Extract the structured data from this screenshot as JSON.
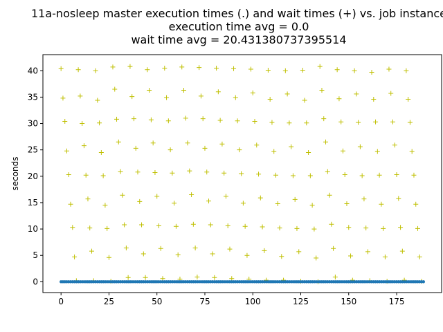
{
  "chart_data": {
    "type": "scatter",
    "title": "11a-nosleep master execution times (.) and wait times (+) vs. job instance",
    "subtitle_lines": [
      "execution time avg = 0.0",
      "wait time avg = 20.431380737395514"
    ],
    "xlabel": "",
    "ylabel": "seconds",
    "xlim": [
      -9.45,
      198.45
    ],
    "ylim": [
      -2.05,
      43.05
    ],
    "xticks": [
      0,
      25,
      50,
      75,
      100,
      125,
      150,
      175
    ],
    "yticks": [
      0,
      5,
      10,
      15,
      20,
      25,
      30,
      35,
      40
    ],
    "grid": false,
    "legend": "none",
    "series": [
      {
        "role": "execution",
        "marker": ".",
        "color": "#1f77b4",
        "n": 190,
        "value": 0.0
      },
      {
        "role": "wait",
        "marker": "+",
        "color": "#bfbf00",
        "x": [
          0,
          1,
          2,
          3,
          4,
          5,
          6,
          7,
          8,
          9,
          10,
          11,
          12,
          13,
          14,
          15,
          16,
          17,
          18,
          19,
          20,
          21,
          22,
          23,
          24,
          25,
          26,
          27,
          28,
          29,
          30,
          31,
          32,
          33,
          34,
          35,
          36,
          37,
          38,
          39,
          40,
          41,
          42,
          43,
          44,
          45,
          46,
          47,
          48,
          49,
          50,
          51,
          52,
          53,
          54,
          55,
          56,
          57,
          58,
          59,
          60,
          61,
          62,
          63,
          64,
          65,
          66,
          67,
          68,
          69,
          70,
          71,
          72,
          73,
          74,
          75,
          76,
          77,
          78,
          79,
          80,
          81,
          82,
          83,
          84,
          85,
          86,
          87,
          88,
          89,
          90,
          91,
          92,
          93,
          94,
          95,
          96,
          97,
          98,
          99,
          100,
          101,
          102,
          103,
          104,
          105,
          106,
          107,
          108,
          109,
          110,
          111,
          112,
          113,
          114,
          115,
          116,
          117,
          118,
          119,
          120,
          121,
          122,
          123,
          124,
          125,
          126,
          127,
          128,
          129,
          130,
          131,
          132,
          133,
          134,
          135,
          136,
          137,
          138,
          139,
          140,
          141,
          142,
          143,
          144,
          145,
          146,
          147,
          148,
          149,
          150,
          151,
          152,
          153,
          154,
          155,
          156,
          157,
          158,
          159,
          160,
          161,
          162,
          163,
          164,
          165,
          166,
          167,
          168,
          169,
          170,
          171,
          172,
          173,
          174,
          175,
          176,
          177,
          178,
          179,
          180,
          181,
          182,
          183,
          184,
          185,
          186,
          187,
          188
        ],
        "y": [
          40.4,
          34.8,
          30.4,
          24.8,
          20.3,
          14.7,
          10.3,
          4.7,
          0.2,
          40.2,
          35.2,
          30.0,
          25.8,
          20.2,
          15.7,
          10.2,
          5.8,
          0.2,
          40.0,
          34.4,
          30.1,
          24.5,
          20.1,
          14.5,
          10.1,
          4.6,
          0.1,
          40.7,
          36.5,
          30.8,
          26.5,
          20.9,
          16.4,
          10.8,
          6.4,
          0.8,
          40.8,
          35.1,
          30.9,
          25.3,
          20.8,
          15.2,
          10.8,
          5.3,
          0.8,
          40.2,
          36.3,
          30.7,
          26.3,
          20.7,
          16.2,
          10.6,
          6.3,
          0.6,
          40.5,
          34.9,
          30.5,
          25.0,
          20.6,
          14.9,
          10.5,
          5.1,
          0.5,
          40.7,
          36.3,
          31.0,
          26.3,
          21.0,
          16.5,
          10.9,
          6.4,
          0.9,
          40.6,
          35.2,
          30.9,
          25.3,
          20.8,
          15.3,
          10.8,
          5.3,
          0.8,
          40.5,
          36.0,
          30.6,
          26.1,
          20.6,
          16.2,
          10.6,
          6.2,
          0.6,
          40.4,
          34.9,
          30.5,
          25.0,
          20.5,
          14.9,
          10.5,
          5.0,
          0.5,
          40.3,
          35.8,
          30.4,
          25.9,
          20.4,
          15.9,
          10.4,
          5.9,
          0.3,
          40.1,
          34.6,
          30.2,
          24.7,
          20.2,
          14.8,
          10.2,
          4.8,
          0.3,
          40.0,
          35.6,
          30.1,
          25.6,
          20.1,
          15.6,
          10.1,
          5.7,
          0.1,
          40.1,
          34.4,
          30.1,
          24.5,
          20.1,
          14.5,
          10.0,
          4.5,
          0.0,
          40.8,
          36.3,
          30.9,
          26.5,
          20.9,
          16.4,
          10.9,
          6.3,
          0.9,
          40.2,
          34.7,
          30.3,
          24.8,
          20.3,
          14.8,
          10.3,
          4.9,
          0.3,
          40.0,
          35.6,
          30.2,
          25.6,
          20.1,
          15.7,
          10.2,
          5.7,
          0.2,
          39.7,
          34.6,
          30.3,
          24.7,
          20.2,
          14.7,
          10.1,
          4.7,
          0.1,
          40.3,
          35.7,
          30.3,
          25.9,
          20.3,
          15.8,
          10.3,
          5.8,
          0.3,
          40.0,
          34.6,
          30.2,
          24.7,
          20.2,
          14.7,
          10.1,
          4.7,
          0.1
        ]
      }
    ]
  }
}
